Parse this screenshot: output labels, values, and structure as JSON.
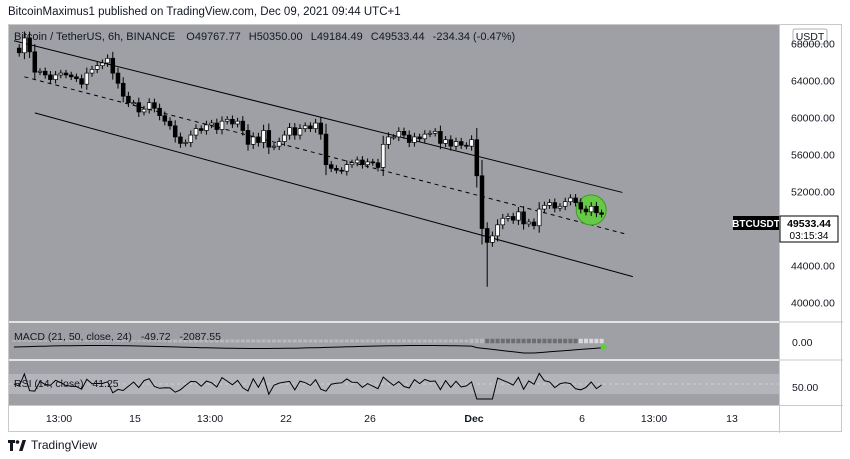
{
  "header": {
    "publisher_line": "BitcoinMaximus1 published on TradingView.com, Dec 09, 2021 09:44 UTC+1"
  },
  "symbol_bar": {
    "title": "Bitcoin / TetherUS, 6h, BINANCE",
    "open_label": "O",
    "open": "49767.77",
    "high_label": "H",
    "high": "50350.00",
    "low_label": "L",
    "low": "49184.49",
    "close_label": "C",
    "close": "49533.44",
    "change": "-234.34 (-0.47%)"
  },
  "price_axis": {
    "currency": "USDT",
    "ticks": [
      "68000.00",
      "64000.00",
      "60000.00",
      "56000.00",
      "52000.00",
      "48000.00",
      "44000.00",
      "40000.00"
    ]
  },
  "price_tag": {
    "symbol": "BTCUSDT",
    "price": "49533.44",
    "countdown": "03:15:34"
  },
  "macd": {
    "label": "MACD (21, 50, close, 24)",
    "v1": "-49.72",
    "v2": "-2087.55",
    "axis_value": "0.00"
  },
  "rsi": {
    "label": "RSI (14, close)",
    "value": "41.25",
    "axis_value": "50.00"
  },
  "time_axis": {
    "ticks": [
      "13:00",
      "15",
      "13:00",
      "22",
      "26",
      "Dec",
      "6",
      "13:00",
      "13"
    ]
  },
  "footer": {
    "brand": "TradingView"
  },
  "colors": {
    "plot_bg": "#9ea0a6",
    "candle_up": "#ffffff",
    "candle_down": "#000000",
    "highlight": "#5cd137"
  },
  "chart_data": {
    "type": "candlestick",
    "title": "Bitcoin / TetherUS, 6h, BINANCE",
    "ylim": [
      38000,
      70000
    ],
    "yticks": [
      68000,
      64000,
      60000,
      56000,
      52000,
      48000,
      44000,
      40000
    ],
    "xticks": [
      "13:00",
      "15",
      "13:00",
      "22",
      "26",
      "Dec",
      "6",
      "13:00",
      "13"
    ],
    "close_path": [
      67500,
      67000,
      68600,
      67100,
      64900,
      65000,
      64600,
      64100,
      64600,
      64800,
      64600,
      64400,
      64200,
      63600,
      64800,
      65200,
      65600,
      65900,
      66400,
      64800,
      63700,
      62300,
      61600,
      61600,
      60600,
      60900,
      61600,
      61000,
      60200,
      59600,
      59100,
      57900,
      57200,
      57300,
      58100,
      58800,
      58600,
      59200,
      59400,
      58700,
      59600,
      59800,
      59300,
      59600,
      58600,
      57100,
      57900,
      57300,
      58600,
      56800,
      56900,
      57400,
      58100,
      58900,
      58100,
      58800,
      59100,
      58800,
      59400,
      58200,
      54900,
      54500,
      54300,
      54200,
      54900,
      55100,
      55400,
      54900,
      55200,
      55100,
      54600,
      57100,
      57900,
      57900,
      58500,
      58100,
      57300,
      57900,
      57700,
      58200,
      58300,
      58500,
      57200,
      57600,
      56900,
      57400,
      57000,
      56900,
      57600,
      53700,
      48000,
      46500,
      47200,
      48400,
      49100,
      49300,
      48900,
      49800,
      48500,
      48700,
      48300,
      50100,
      50500,
      50800,
      50200,
      50400,
      50900,
      51300,
      50800,
      50100,
      49800,
      50400,
      49700,
      49533.44
    ],
    "channel": {
      "upper": {
        "from": [
          0,
          68300
        ],
        "to": [
          117,
          51900
        ]
      },
      "lower": {
        "from": [
          4,
          60500
        ],
        "to": [
          119,
          42800
        ]
      },
      "mid_dashed": true
    },
    "macd": {
      "params": "21, 50, close, 24",
      "value1": -49.72,
      "value2": -2087.55
    },
    "rsi": {
      "params": "14, close",
      "value": 41.25,
      "band": [
        30,
        70
      ]
    }
  }
}
